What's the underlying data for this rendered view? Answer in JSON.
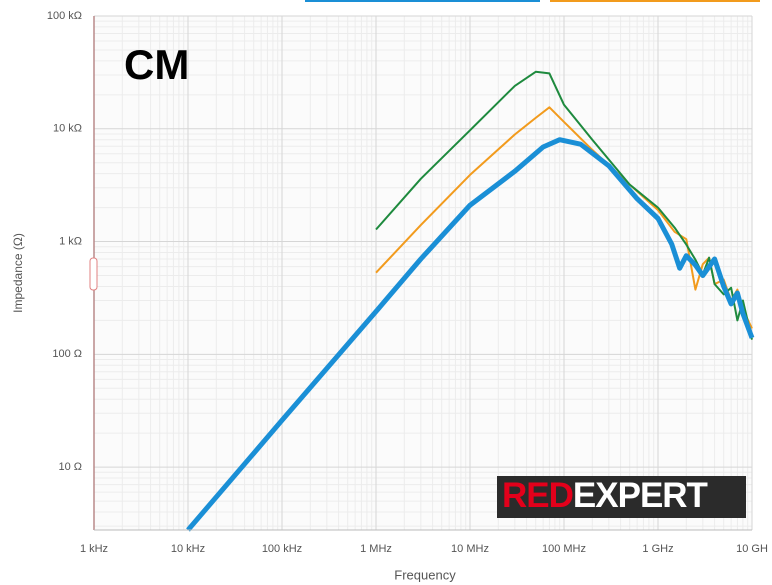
{
  "chart_data": {
    "type": "line",
    "annotation": "CM",
    "logo": {
      "red": "RED",
      "white": "EXPERT"
    },
    "xlabel": "Frequency",
    "ylabel": "Impedance (Ω)",
    "xscale": "log",
    "yscale": "log",
    "grid": true,
    "xlim": [
      1000,
      10000000000
    ],
    "ylim": [
      2.77,
      100000
    ],
    "xticks": [
      {
        "value": 1000,
        "label": "1 kHz"
      },
      {
        "value": 10000,
        "label": "10 kHz"
      },
      {
        "value": 100000,
        "label": "100 kHz"
      },
      {
        "value": 1000000,
        "label": "1 MHz"
      },
      {
        "value": 10000000,
        "label": "10 MHz"
      },
      {
        "value": 100000000,
        "label": "100 MHz"
      },
      {
        "value": 1000000000,
        "label": "1 GHz"
      },
      {
        "value": 10000000000,
        "label": "10 GH"
      }
    ],
    "yticks": [
      {
        "value": 10,
        "label": "10 Ω"
      },
      {
        "value": 100,
        "label": "100 Ω"
      },
      {
        "value": 1000,
        "label": "1 kΩ"
      },
      {
        "value": 10000,
        "label": "10 kΩ"
      },
      {
        "value": 100000,
        "label": "100 kΩ"
      }
    ],
    "series": [
      {
        "color": "#f29b1d",
        "width": 2,
        "x": [
          1000000,
          3000000,
          10000000,
          30000000,
          50000000,
          70000000,
          100000000,
          200000000,
          500000000,
          1000000000,
          1500000000,
          2000000000,
          2500000000,
          3000000000,
          3500000000,
          4000000000,
          5000000000,
          6000000000,
          7000000000,
          8000000000,
          10000000000
        ],
        "values": [
          530,
          1400,
          3900,
          8900,
          12500,
          15500,
          11500,
          6500,
          3200,
          1900,
          1220,
          1050,
          375,
          630,
          720,
          420,
          460,
          300,
          375,
          250,
          170
        ]
      },
      {
        "color": "#1e8a3e",
        "width": 2,
        "x": [
          1000000,
          3000000,
          10000000,
          30000000,
          50000000,
          70000000,
          100000000,
          200000000,
          500000000,
          1000000000,
          1500000000,
          2000000000,
          2500000000,
          3000000000,
          3500000000,
          4000000000,
          5000000000,
          6000000000,
          7000000000,
          8000000000,
          10000000000
        ],
        "values": [
          1280,
          3600,
          9700,
          24000,
          32000,
          31000,
          16300,
          8000,
          3200,
          2000,
          1330,
          940,
          690,
          510,
          720,
          420,
          340,
          390,
          200,
          300,
          135
        ]
      },
      {
        "color": "#1a8fd6",
        "width": 5,
        "x": [
          10000,
          100000,
          1000000,
          3000000,
          10000000,
          30000000,
          60000000,
          90000000,
          150000000,
          300000000,
          600000000,
          1000000000,
          1400000000,
          1700000000,
          2000000000,
          2500000000,
          3000000000,
          4000000000,
          5000000000,
          6000000000,
          7000000000,
          8000000000,
          10000000000
        ],
        "values": [
          2.77,
          26,
          240,
          700,
          2100,
          4200,
          6900,
          8000,
          7300,
          4700,
          2400,
          1600,
          950,
          580,
          750,
          620,
          500,
          700,
          400,
          280,
          350,
          230,
          140
        ]
      }
    ]
  }
}
